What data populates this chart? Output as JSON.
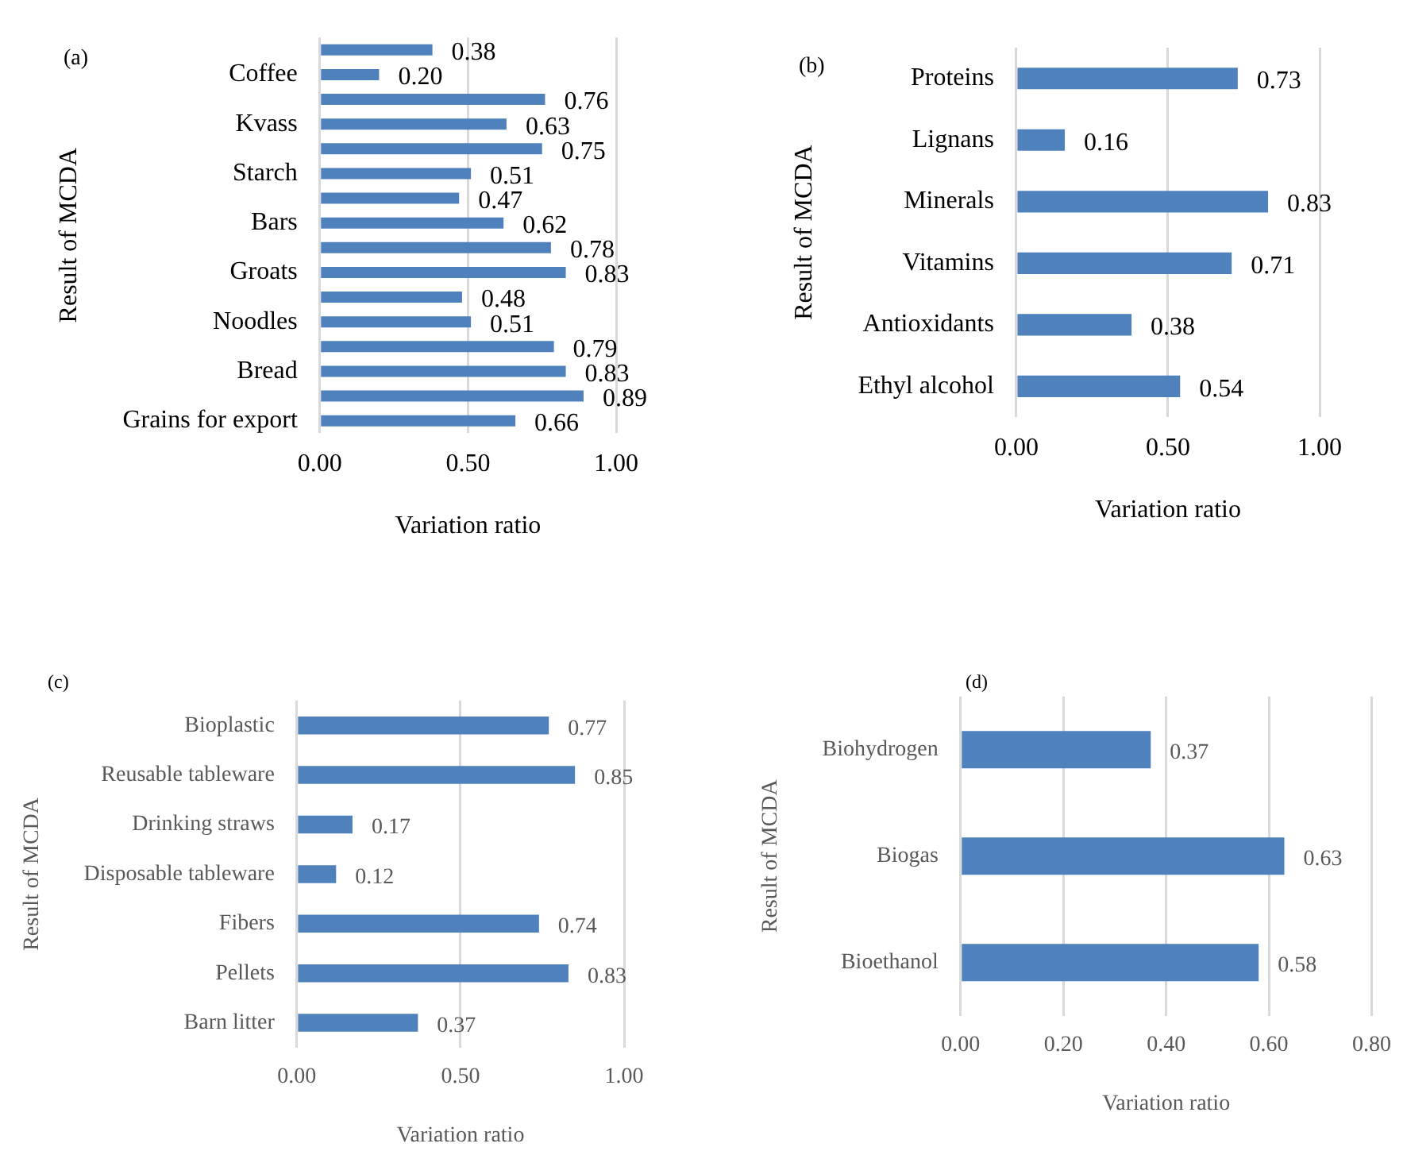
{
  "chart_data": [
    {
      "type": "bar",
      "orientation": "horizontal",
      "annotations": [
        "(a)"
      ],
      "xlabel": "Variation ratio",
      "ylabel": "Result of MCDA",
      "categories": [
        null,
        "Coffee",
        null,
        "Kvass",
        null,
        "Starch",
        null,
        "Bars",
        null,
        "Groats",
        null,
        "Noodles",
        null,
        "Bread",
        null,
        "Grains for export"
      ],
      "values": [
        0.38,
        0.2,
        0.76,
        0.63,
        0.75,
        0.51,
        0.47,
        0.62,
        0.78,
        0.83,
        0.48,
        0.51,
        0.79,
        0.83,
        0.89,
        0.66
      ],
      "value_labels": [
        "0.38",
        "0.20",
        "0.76",
        "0.63",
        "0.75",
        "0.51",
        "0.47",
        "0.62",
        "0.78",
        "0.83",
        "0.48",
        "0.51",
        "0.79",
        "0.83",
        "0.89",
        "0.66"
      ],
      "color": "#4f81bd",
      "xlim": [
        0,
        1
      ],
      "xticks": [
        {
          "value": 0,
          "label": "0.00"
        },
        {
          "value": 0.5,
          "label": "0.50"
        },
        {
          "value": 1,
          "label": "1.00"
        }
      ],
      "grid": "x"
    },
    {
      "type": "bar",
      "orientation": "horizontal",
      "annotations": [
        "(b)"
      ],
      "xlabel": "Variation ratio",
      "ylabel": "Result of MCDA",
      "categories": [
        "Proteins",
        "Lignans",
        "Minerals",
        "Vitamins",
        "Antioxidants",
        "Ethyl alcohol"
      ],
      "values": [
        0.73,
        0.16,
        0.83,
        0.71,
        0.38,
        0.54
      ],
      "value_labels": [
        "0.73",
        "0.16",
        "0.83",
        "0.71",
        "0.38",
        "0.54"
      ],
      "color": "#4f81bd",
      "xlim": [
        0,
        1
      ],
      "xticks": [
        {
          "value": 0,
          "label": "0.00"
        },
        {
          "value": 0.5,
          "label": "0.50"
        },
        {
          "value": 1,
          "label": "1.00"
        }
      ],
      "grid": "x"
    },
    {
      "type": "bar",
      "orientation": "horizontal",
      "annotations": [
        "(c)"
      ],
      "xlabel": "Variation ratio",
      "ylabel": "Result of MCDA",
      "categories": [
        "Bioplastic",
        "Reusable tableware",
        "Drinking straws",
        "Disposable tableware",
        "Fibers",
        "Pellets",
        "Barn litter"
      ],
      "values": [
        0.77,
        0.85,
        0.17,
        0.12,
        0.74,
        0.83,
        0.37
      ],
      "value_labels": [
        "0.77",
        "0.85",
        "0.17",
        "0.12",
        "0.74",
        "0.83",
        "0.37"
      ],
      "color": "#4f81bd",
      "xlim": [
        0,
        1
      ],
      "xticks": [
        {
          "value": 0,
          "label": "0.00"
        },
        {
          "value": 0.5,
          "label": "0.50"
        },
        {
          "value": 1,
          "label": "1.00"
        }
      ],
      "grid": "x"
    },
    {
      "type": "bar",
      "orientation": "horizontal",
      "annotations": [
        "(d)"
      ],
      "xlabel": "Variation ratio",
      "ylabel": "Result of MCDA",
      "categories": [
        "Biohydrogen",
        "Biogas",
        "Bioethanol"
      ],
      "values": [
        0.37,
        0.63,
        0.58
      ],
      "value_labels": [
        "0.37",
        "0.63",
        "0.58"
      ],
      "color": "#4f81bd",
      "xlim": [
        0,
        0.8
      ],
      "xticks": [
        {
          "value": 0,
          "label": "0.00"
        },
        {
          "value": 0.2,
          "label": "0.20"
        },
        {
          "value": 0.4,
          "label": "0.40"
        },
        {
          "value": 0.6,
          "label": "0.60"
        },
        {
          "value": 0.8,
          "label": "0.80"
        }
      ],
      "grid": "x"
    }
  ]
}
